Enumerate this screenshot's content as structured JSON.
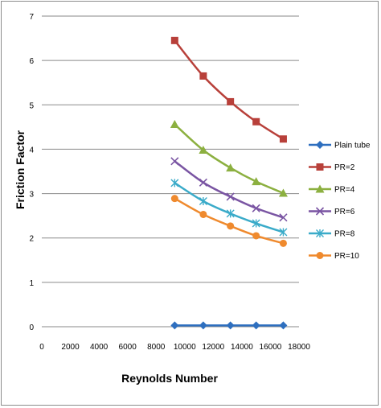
{
  "chart_data": {
    "type": "line",
    "title": "",
    "xlabel": "Reynolds Number",
    "ylabel": "Friction Factor",
    "xlim": [
      0,
      18000
    ],
    "ylim": [
      0,
      7
    ],
    "xticks": [
      0,
      2000,
      4000,
      6000,
      8000,
      10000,
      12000,
      14000,
      16000,
      18000
    ],
    "yticks": [
      0,
      1,
      2,
      3,
      4,
      5,
      6,
      7
    ],
    "grid": "horizontal",
    "legend_position": "right",
    "x": [
      9300,
      11300,
      13200,
      15000,
      16900
    ],
    "series": [
      {
        "name": "Plain tube",
        "values": [
          0.03,
          0.03,
          0.03,
          0.03,
          0.03
        ],
        "color": "#2e6fbf",
        "marker": "diamond"
      },
      {
        "name": "PR=2",
        "values": [
          6.45,
          5.65,
          5.07,
          4.62,
          4.23
        ],
        "color": "#b8403a",
        "marker": "square"
      },
      {
        "name": "PR=4",
        "values": [
          4.56,
          3.98,
          3.58,
          3.27,
          3.01
        ],
        "color": "#8cb040",
        "marker": "triangle"
      },
      {
        "name": "PR=6",
        "values": [
          3.73,
          3.25,
          2.93,
          2.67,
          2.46
        ],
        "color": "#7a55a3",
        "marker": "x"
      },
      {
        "name": "PR=8",
        "values": [
          3.24,
          2.83,
          2.55,
          2.33,
          2.13
        ],
        "color": "#3aabc9",
        "marker": "star"
      },
      {
        "name": "PR=10",
        "values": [
          2.89,
          2.53,
          2.27,
          2.05,
          1.88
        ],
        "color": "#ef8a2e",
        "marker": "circle"
      }
    ]
  }
}
